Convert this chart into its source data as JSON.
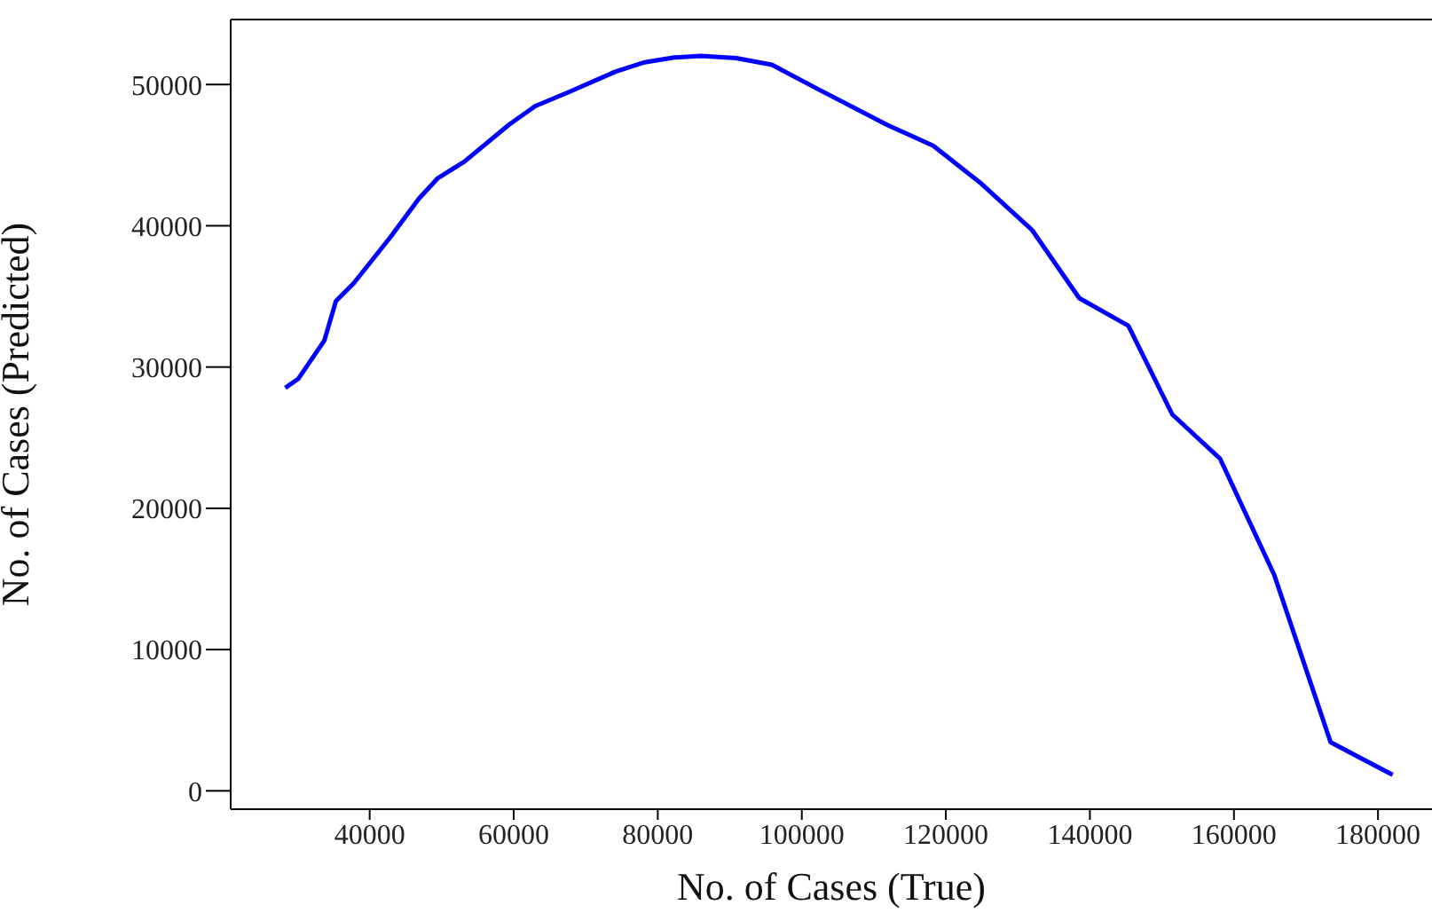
{
  "chart_data": {
    "type": "line",
    "xlabel": "No. of Cases (True)",
    "ylabel": "No. of Cases (Predicted)",
    "x": [
      28280,
      30070,
      33700,
      35320,
      37780,
      42880,
      46820,
      49460,
      53150,
      59310,
      63000,
      67510,
      74090,
      78180,
      82290,
      85980,
      90910,
      95840,
      101990,
      111850,
      118250,
      124970,
      131970,
      138520,
      145340,
      151430,
      158080,
      165610,
      173420,
      182040
    ],
    "series": [
      {
        "color": "#0000ff",
        "values": [
          28530,
          29160,
          31870,
          34680,
          35930,
          39200,
          41910,
          43370,
          44540,
          47140,
          48480,
          49430,
          50900,
          51570,
          51910,
          52030,
          51870,
          51400,
          49740,
          47140,
          45670,
          42960,
          39700,
          34880,
          32920,
          26650,
          23510,
          15270,
          3440,
          1130
        ]
      }
    ],
    "xlim": [
      20700,
      187500
    ],
    "xticks": [
      40000,
      60000,
      80000,
      100000,
      120000,
      140000,
      160000,
      180000
    ],
    "ylim": [
      -1300,
      54600
    ],
    "yticks": [
      0,
      10000,
      20000,
      30000,
      40000,
      50000
    ],
    "grid": false,
    "legend": false,
    "line_style": "solid"
  }
}
